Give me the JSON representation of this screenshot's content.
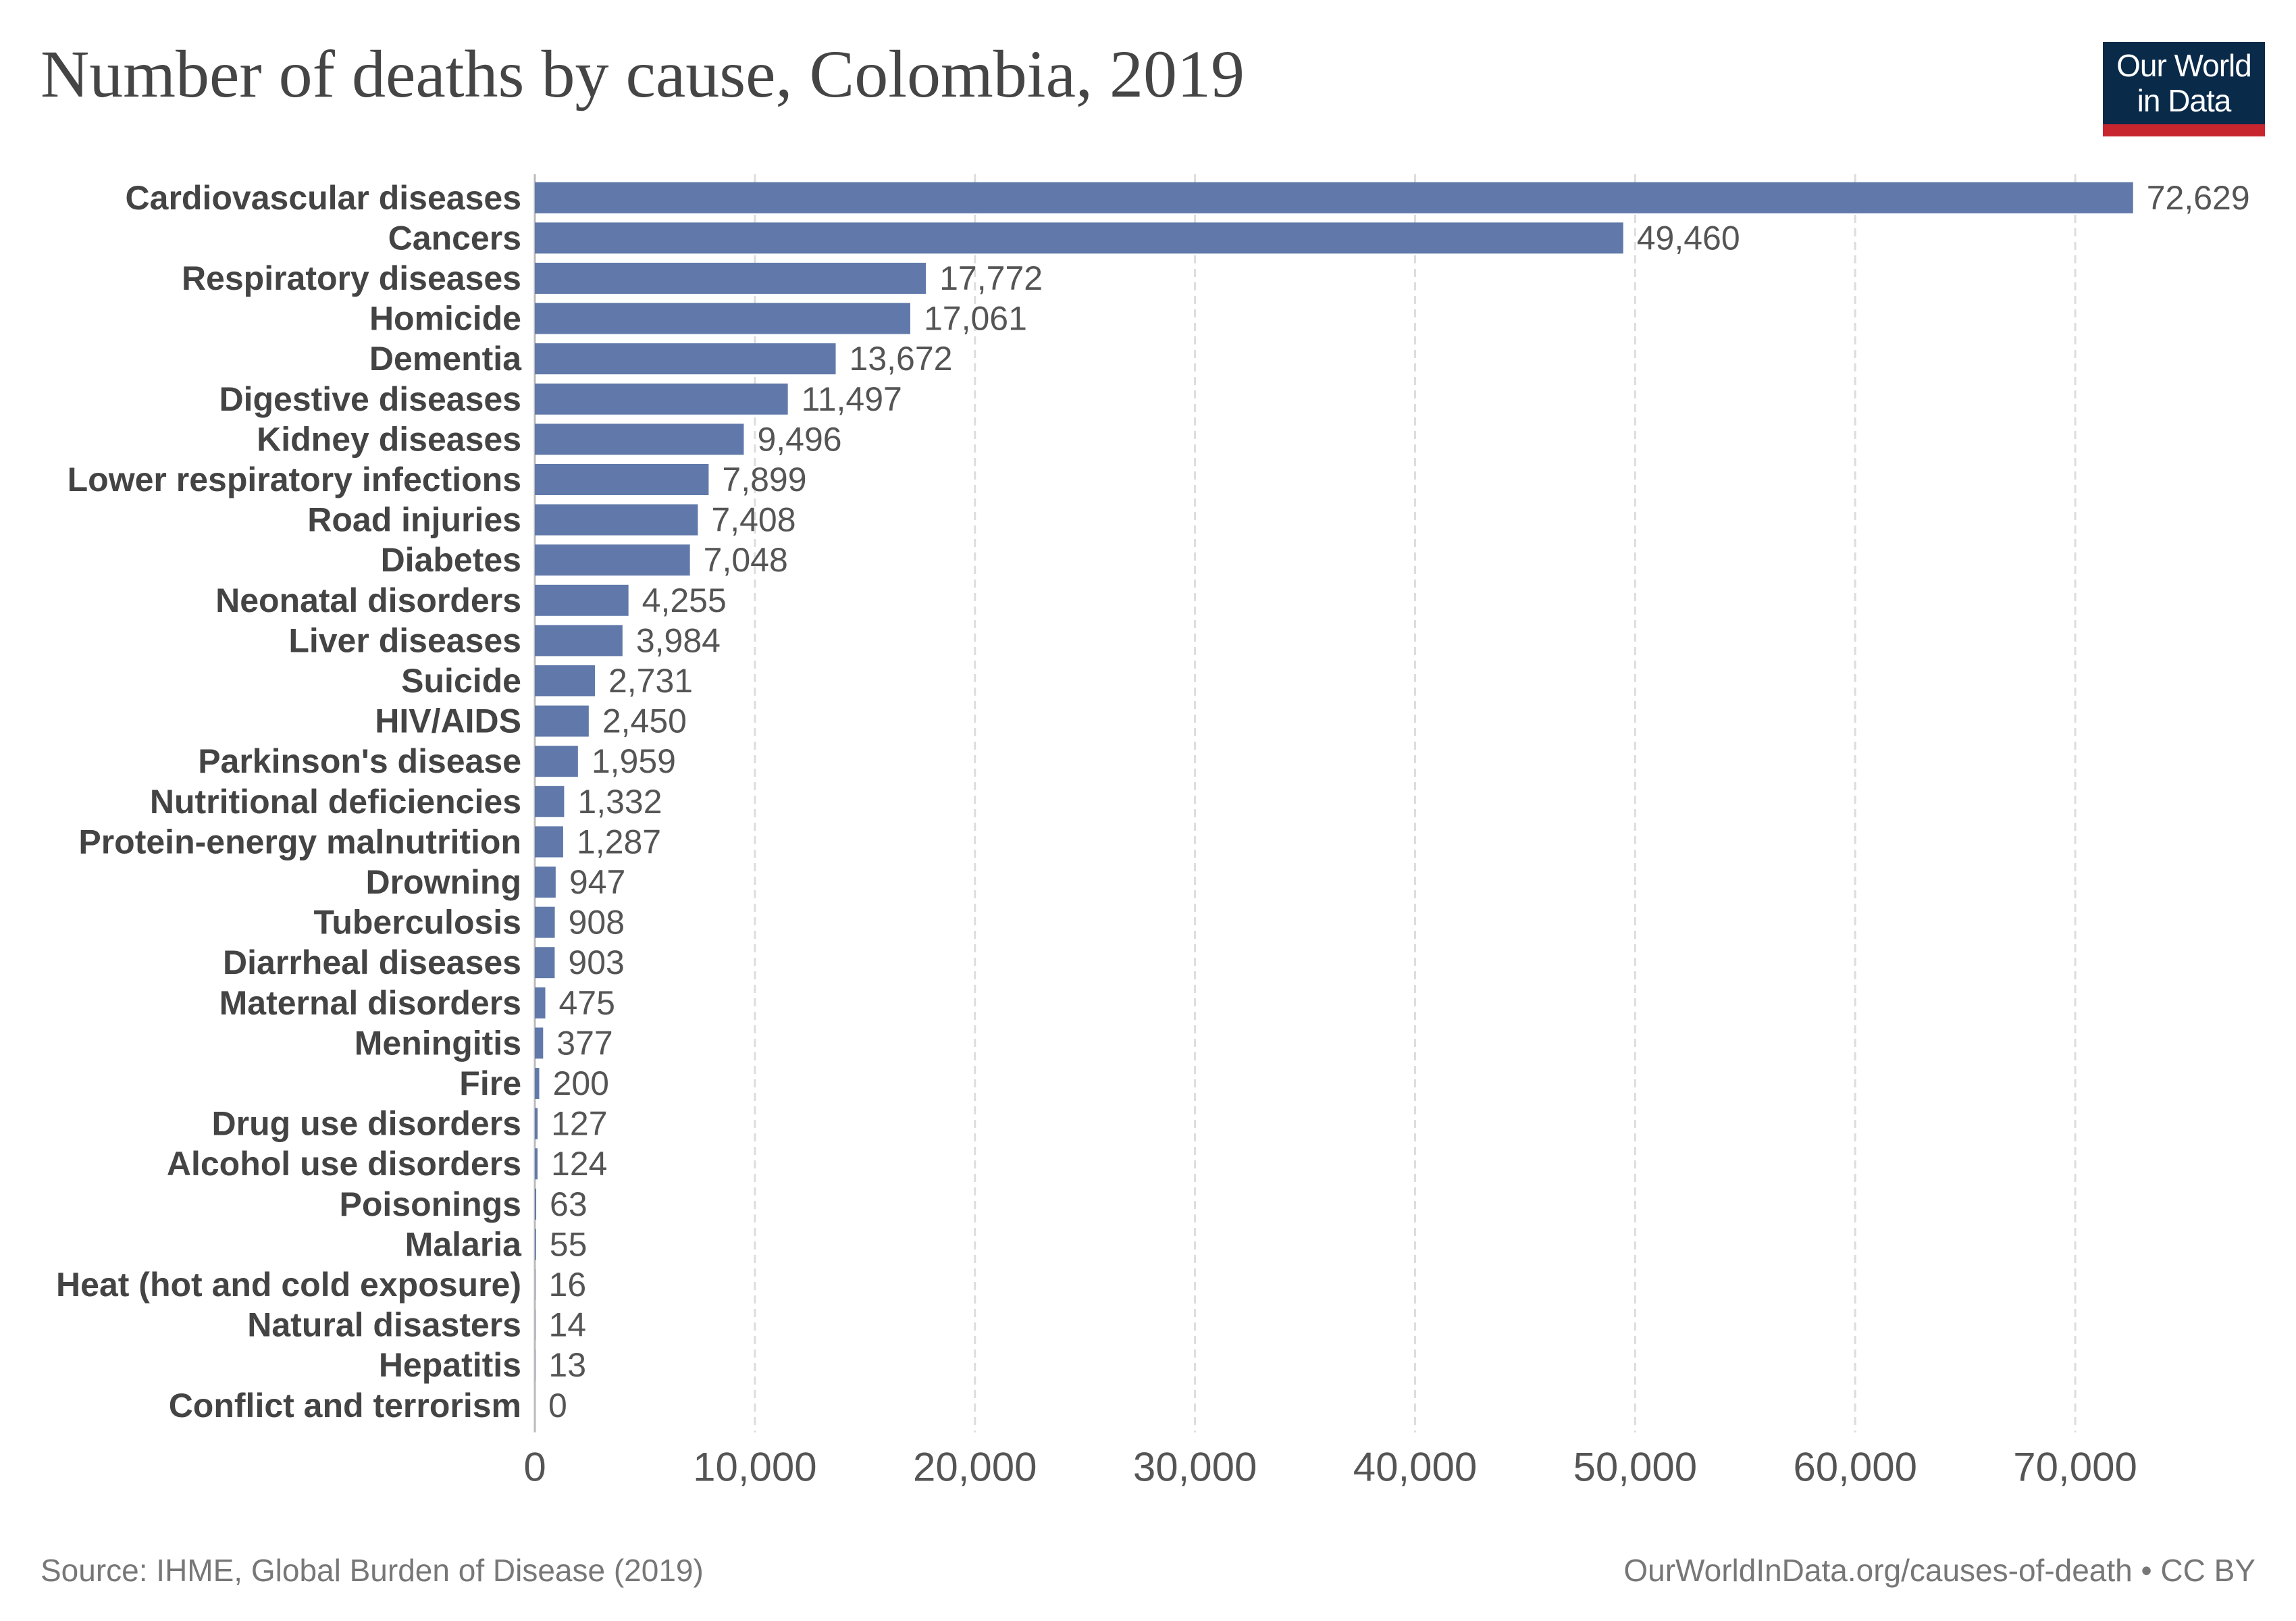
{
  "title": "Number of deaths by cause, Colombia, 2019",
  "logo": {
    "line1": "Our World",
    "line2": "in Data"
  },
  "source": "Source: IHME, Global Burden of Disease (2019)",
  "credit": "OurWorldInData.org/causes-of-death • CC BY",
  "colors": {
    "bar": "#6079aa",
    "grid": "#dddddd",
    "text": "#555555",
    "label": "#444444"
  },
  "chart_data": {
    "type": "bar",
    "orientation": "horizontal",
    "title": "Number of deaths by cause, Colombia, 2019",
    "xlabel": "",
    "ylabel": "",
    "xlim": [
      0,
      75000
    ],
    "xticks": [
      0,
      10000,
      20000,
      30000,
      40000,
      50000,
      60000,
      70000
    ],
    "xtick_labels": [
      "0",
      "10,000",
      "20,000",
      "30,000",
      "40,000",
      "50,000",
      "60,000",
      "70,000"
    ],
    "grid": "vertical dashed",
    "categories": [
      "Cardiovascular diseases",
      "Cancers",
      "Respiratory diseases",
      "Homicide",
      "Dementia",
      "Digestive diseases",
      "Kidney diseases",
      "Lower respiratory infections",
      "Road injuries",
      "Diabetes",
      "Neonatal disorders",
      "Liver diseases",
      "Suicide",
      "HIV/AIDS",
      "Parkinson's disease",
      "Nutritional deficiencies",
      "Protein-energy malnutrition",
      "Drowning",
      "Tuberculosis",
      "Diarrheal diseases",
      "Maternal disorders",
      "Meningitis",
      "Fire",
      "Drug use disorders",
      "Alcohol use disorders",
      "Poisonings",
      "Malaria",
      "Heat (hot and cold exposure)",
      "Natural disasters",
      "Hepatitis",
      "Conflict and terrorism"
    ],
    "values": [
      72629,
      49460,
      17772,
      17061,
      13672,
      11497,
      9496,
      7899,
      7408,
      7048,
      4255,
      3984,
      2731,
      2450,
      1959,
      1332,
      1287,
      947,
      908,
      903,
      475,
      377,
      200,
      127,
      124,
      63,
      55,
      16,
      14,
      13,
      0
    ],
    "value_labels": [
      "72,629",
      "49,460",
      "17,772",
      "17,061",
      "13,672",
      "11,497",
      "9,496",
      "7,899",
      "7,408",
      "7,048",
      "4,255",
      "3,984",
      "2,731",
      "2,450",
      "1,959",
      "1,332",
      "1,287",
      "947",
      "908",
      "903",
      "475",
      "377",
      "200",
      "127",
      "124",
      "63",
      "55",
      "16",
      "14",
      "13",
      "0"
    ]
  }
}
